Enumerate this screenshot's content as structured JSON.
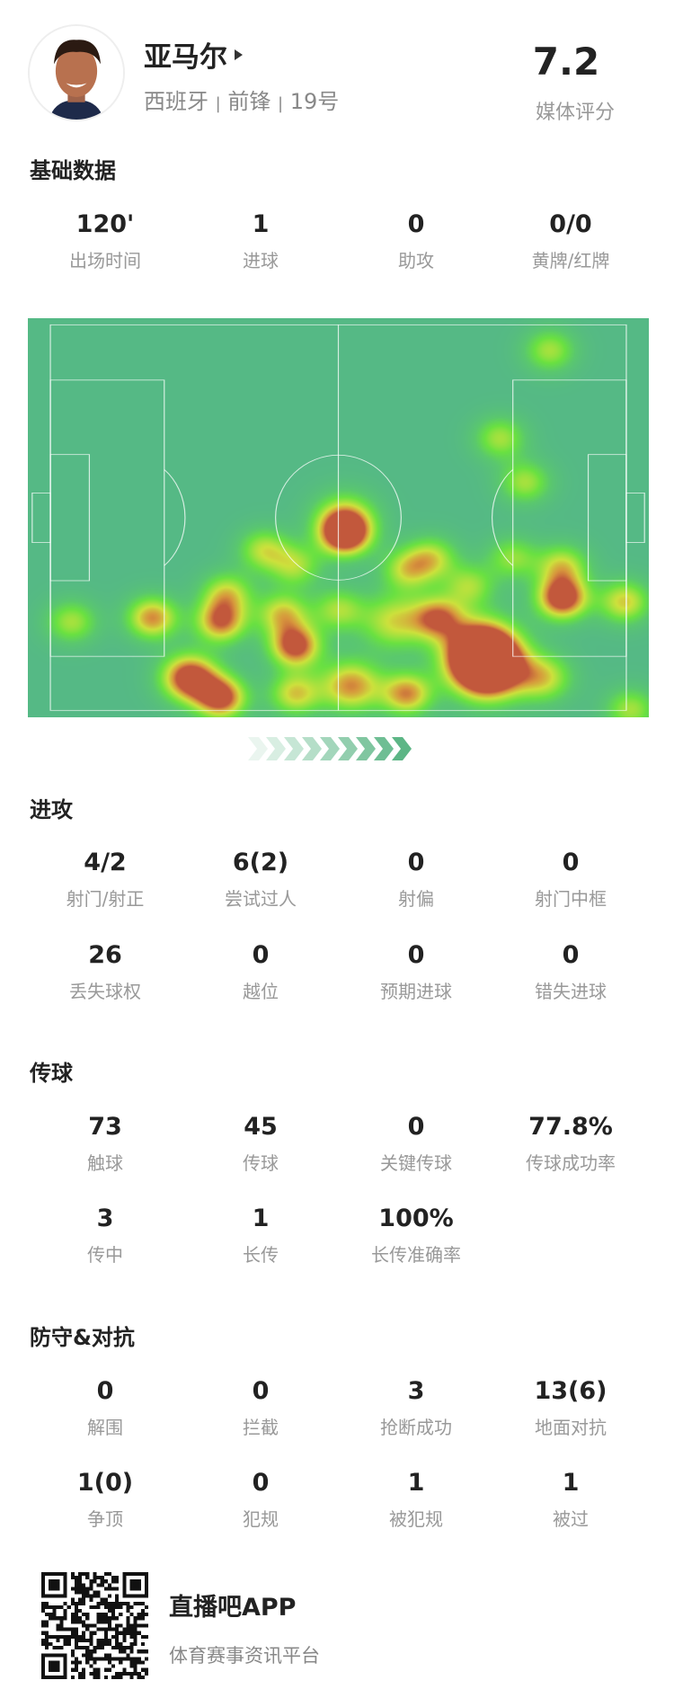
{
  "player": {
    "name": "亚马尔",
    "country": "西班牙",
    "position": "前锋",
    "number": "19号",
    "separator": "|",
    "rating": "7.2",
    "rating_label": "媒体评分"
  },
  "sections": [
    {
      "title": "基础数据",
      "rows": [
        [
          {
            "v": "120'",
            "l": "出场时间"
          },
          {
            "v": "1",
            "l": "进球"
          },
          {
            "v": "0",
            "l": "助攻"
          },
          {
            "v": "0/0",
            "l": "黄牌/红牌"
          }
        ]
      ]
    },
    {
      "title": "进攻",
      "rows": [
        [
          {
            "v": "4/2",
            "l": "射门/射正"
          },
          {
            "v": "6(2)",
            "l": "尝试过人"
          },
          {
            "v": "0",
            "l": "射偏"
          },
          {
            "v": "0",
            "l": "射门中框"
          }
        ],
        [
          {
            "v": "26",
            "l": "丢失球权"
          },
          {
            "v": "0",
            "l": "越位"
          },
          {
            "v": "0",
            "l": "预期进球"
          },
          {
            "v": "0",
            "l": "错失进球"
          }
        ]
      ]
    },
    {
      "title": "传球",
      "rows": [
        [
          {
            "v": "73",
            "l": "触球"
          },
          {
            "v": "45",
            "l": "传球"
          },
          {
            "v": "0",
            "l": "关键传球"
          },
          {
            "v": "77.8%",
            "l": "传球成功率"
          }
        ],
        [
          {
            "v": "3",
            "l": "传中"
          },
          {
            "v": "1",
            "l": "长传"
          },
          {
            "v": "100%",
            "l": "长传准确率"
          }
        ]
      ]
    },
    {
      "title": "防守&对抗",
      "rows": [
        [
          {
            "v": "0",
            "l": "解围"
          },
          {
            "v": "0",
            "l": "拦截"
          },
          {
            "v": "3",
            "l": "抢断成功"
          },
          {
            "v": "13(6)",
            "l": "地面对抗"
          }
        ],
        [
          {
            "v": "1(0)",
            "l": "争顶"
          },
          {
            "v": "0",
            "l": "犯规"
          },
          {
            "v": "1",
            "l": "被犯规"
          },
          {
            "v": "1",
            "l": "被过"
          }
        ]
      ]
    }
  ],
  "heatmap": {
    "direction": "attacking-right",
    "colors": {
      "pitch": "#55b985",
      "low": "#66e040",
      "mid": "#d8e23a",
      "high": "#c2583c"
    }
  },
  "footer": {
    "app_name": "直播吧APP",
    "slogan": "体育赛事资讯平台"
  }
}
